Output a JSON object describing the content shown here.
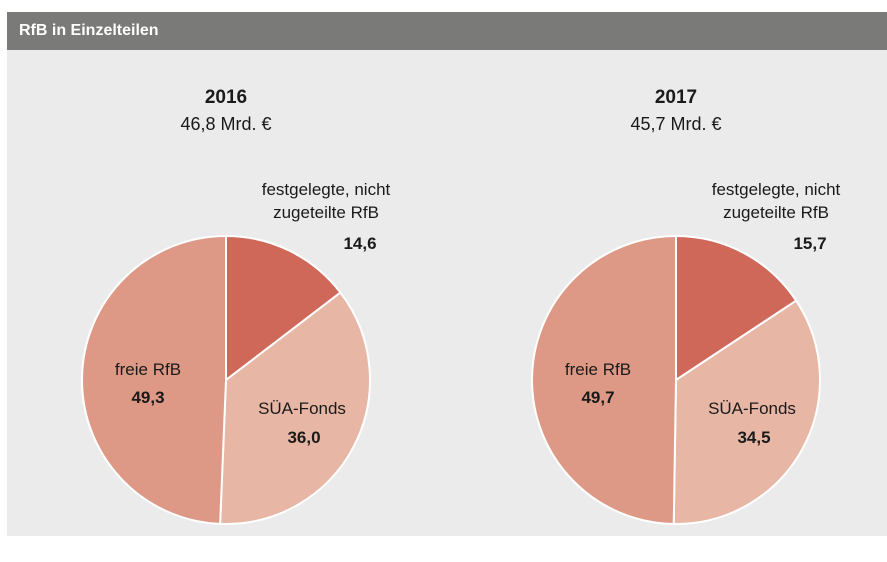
{
  "header": {
    "title": "RfB in Einzelteilen"
  },
  "chart_data": [
    {
      "type": "pie",
      "title": "2016",
      "subtitle": "46,8 Mrd. €",
      "categories": [
        "festgelegte, nicht zugeteilte RfB",
        "SÜA-Fonds",
        "freie RfB"
      ],
      "values": [
        14.6,
        36.0,
        49.3
      ],
      "value_labels": [
        "14,6",
        "36,0",
        "49,3"
      ],
      "colors": [
        "#d0685a",
        "#e8b6a5",
        "#dd9985"
      ]
    },
    {
      "type": "pie",
      "title": "2017",
      "subtitle": "45,7 Mrd. €",
      "categories": [
        "festgelegte, nicht zugeteilte RfB",
        "SÜA-Fonds",
        "freie RfB"
      ],
      "values": [
        15.7,
        34.5,
        49.7
      ],
      "value_labels": [
        "15,7",
        "34,5",
        "49,7"
      ],
      "colors": [
        "#d0685a",
        "#e8b6a5",
        "#dd9985"
      ]
    }
  ]
}
